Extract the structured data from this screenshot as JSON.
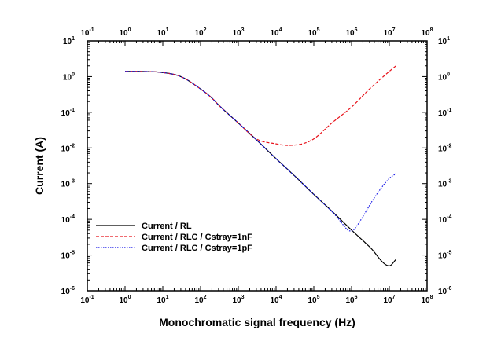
{
  "chart_data": {
    "type": "line",
    "xlabel": "Monochromatic signal frequency (Hz)",
    "ylabel": "Current (A)",
    "x_scale": "log",
    "y_scale": "log",
    "xlim": [
      0.1,
      100000000
    ],
    "ylim": [
      1e-06,
      10
    ],
    "x_ticks": [
      {
        "base": "10",
        "exp": "-1",
        "value": 0.1
      },
      {
        "base": "10",
        "exp": "0",
        "value": 1
      },
      {
        "base": "10",
        "exp": "1",
        "value": 10
      },
      {
        "base": "10",
        "exp": "2",
        "value": 100
      },
      {
        "base": "10",
        "exp": "3",
        "value": 1000
      },
      {
        "base": "10",
        "exp": "4",
        "value": 10000
      },
      {
        "base": "10",
        "exp": "5",
        "value": 100000
      },
      {
        "base": "10",
        "exp": "6",
        "value": 1000000
      },
      {
        "base": "10",
        "exp": "7",
        "value": 10000000
      },
      {
        "base": "10",
        "exp": "8",
        "value": 100000000
      }
    ],
    "y_ticks": [
      {
        "base": "10",
        "exp": "1",
        "value": 10
      },
      {
        "base": "10",
        "exp": "0",
        "value": 1
      },
      {
        "base": "10",
        "exp": "-1",
        "value": 0.1
      },
      {
        "base": "10",
        "exp": "-2",
        "value": 0.01
      },
      {
        "base": "10",
        "exp": "-3",
        "value": 0.001
      },
      {
        "base": "10",
        "exp": "-4",
        "value": 0.0001
      },
      {
        "base": "10",
        "exp": "-5",
        "value": 1e-05
      },
      {
        "base": "10",
        "exp": "-6",
        "value": 1e-06
      }
    ],
    "grid": false,
    "legend_position": "bottom-left",
    "series": [
      {
        "name": "Current / RL",
        "color": "#000000",
        "dash": "solid",
        "x": [
          1,
          3,
          10,
          30,
          100,
          200,
          300,
          1000,
          3000,
          10000,
          30000,
          100000,
          300000,
          1000000,
          3000000,
          10000000,
          15000000
        ],
        "y": [
          1.4,
          1.39,
          1.3,
          1.0,
          0.45,
          0.25,
          0.16,
          0.05,
          0.017,
          0.005,
          0.0017,
          0.0005,
          0.00017,
          5e-05,
          1.7e-05,
          5e-06,
          7.5e-06
        ]
      },
      {
        "name": "Current / RLC / Cstray=1nF",
        "color": "#e8131b",
        "dash": "dashed",
        "x": [
          1,
          3,
          10,
          30,
          100,
          200,
          300,
          1000,
          3000,
          10000,
          20000,
          30000,
          50000,
          100000,
          300000,
          1000000,
          3000000,
          10000000,
          15000000
        ],
        "y": [
          1.4,
          1.39,
          1.3,
          1.0,
          0.45,
          0.25,
          0.16,
          0.05,
          0.018,
          0.013,
          0.0118,
          0.012,
          0.013,
          0.018,
          0.05,
          0.14,
          0.45,
          1.4,
          2.0
        ]
      },
      {
        "name": "Current / RLC / Cstray=1pF",
        "color": "#1515e8",
        "dash": "dotted",
        "x": [
          1,
          3,
          10,
          30,
          100,
          200,
          300,
          1000,
          3000,
          10000,
          30000,
          100000,
          200000,
          400000,
          600000,
          800000,
          1000000,
          1300000,
          2000000,
          4000000,
          10000000,
          15000000
        ],
        "y": [
          1.4,
          1.39,
          1.3,
          1.0,
          0.45,
          0.25,
          0.16,
          0.05,
          0.017,
          0.005,
          0.0017,
          0.0005,
          0.00025,
          0.00012,
          7e-05,
          5e-05,
          4.7e-05,
          6e-05,
          0.00012,
          0.0004,
          0.0014,
          0.0019
        ]
      }
    ]
  }
}
